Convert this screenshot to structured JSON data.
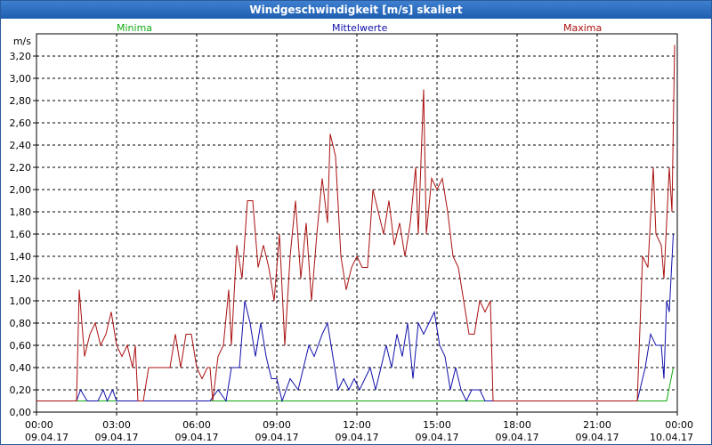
{
  "window": {
    "title": "Windgeschwindigkeit [m/s] skaliert"
  },
  "chart_data": {
    "type": "line",
    "title": "Windgeschwindigkeit [m/s] skaliert",
    "ylabel": "m/s",
    "ylim": [
      0,
      3.4
    ],
    "xlim_hours": [
      0,
      24
    ],
    "y_ticks": [
      "0,00",
      "0,20",
      "0,40",
      "0,60",
      "0,80",
      "1,00",
      "1,20",
      "1,40",
      "1,60",
      "1,80",
      "2,00",
      "2,20",
      "2,40",
      "2,60",
      "2,80",
      "3,00",
      "3,20"
    ],
    "x_ticks": [
      {
        "time": "00:00",
        "date": "09.04.17"
      },
      {
        "time": "03:00",
        "date": "09.04.17"
      },
      {
        "time": "06:00",
        "date": "09.04.17"
      },
      {
        "time": "09:00",
        "date": "09.04.17"
      },
      {
        "time": "12:00",
        "date": "09.04.17"
      },
      {
        "time": "15:00",
        "date": "09.04.17"
      },
      {
        "time": "18:00",
        "date": "09.04.17"
      },
      {
        "time": "21:00",
        "date": "09.04.17"
      },
      {
        "time": "00:00",
        "date": "10.04.17"
      }
    ],
    "grid": true,
    "series": [
      {
        "name": "Minima",
        "color": "#11aa11",
        "points": [
          [
            0,
            0.1
          ],
          [
            23.6,
            0.1
          ],
          [
            23.85,
            0.4
          ]
        ]
      },
      {
        "name": "Mittelwerte",
        "color": "#1111aa",
        "points": [
          [
            0,
            0.1
          ],
          [
            1.5,
            0.1
          ],
          [
            1.65,
            0.2
          ],
          [
            1.9,
            0.1
          ],
          [
            2.3,
            0.1
          ],
          [
            2.5,
            0.2
          ],
          [
            2.65,
            0.1
          ],
          [
            2.85,
            0.2
          ],
          [
            3.0,
            0.1
          ],
          [
            6.5,
            0.1
          ],
          [
            6.8,
            0.2
          ],
          [
            7.1,
            0.1
          ],
          [
            7.3,
            0.4
          ],
          [
            7.6,
            0.4
          ],
          [
            7.8,
            1.0
          ],
          [
            8.0,
            0.8
          ],
          [
            8.2,
            0.5
          ],
          [
            8.4,
            0.8
          ],
          [
            8.6,
            0.5
          ],
          [
            8.8,
            0.3
          ],
          [
            9.0,
            0.3
          ],
          [
            9.2,
            0.1
          ],
          [
            9.5,
            0.3
          ],
          [
            9.8,
            0.2
          ],
          [
            10.0,
            0.4
          ],
          [
            10.2,
            0.6
          ],
          [
            10.4,
            0.5
          ],
          [
            10.7,
            0.7
          ],
          [
            10.9,
            0.8
          ],
          [
            11.1,
            0.5
          ],
          [
            11.3,
            0.2
          ],
          [
            11.5,
            0.3
          ],
          [
            11.7,
            0.2
          ],
          [
            11.9,
            0.3
          ],
          [
            12.1,
            0.2
          ],
          [
            12.3,
            0.3
          ],
          [
            12.5,
            0.4
          ],
          [
            12.7,
            0.2
          ],
          [
            12.9,
            0.4
          ],
          [
            13.1,
            0.6
          ],
          [
            13.3,
            0.4
          ],
          [
            13.5,
            0.7
          ],
          [
            13.7,
            0.5
          ],
          [
            13.9,
            0.8
          ],
          [
            14.1,
            0.3
          ],
          [
            14.3,
            0.8
          ],
          [
            14.5,
            0.7
          ],
          [
            14.7,
            0.8
          ],
          [
            14.9,
            0.9
          ],
          [
            15.1,
            0.6
          ],
          [
            15.3,
            0.5
          ],
          [
            15.5,
            0.2
          ],
          [
            15.7,
            0.4
          ],
          [
            15.9,
            0.2
          ],
          [
            16.1,
            0.1
          ],
          [
            16.3,
            0.2
          ],
          [
            16.6,
            0.2
          ],
          [
            16.8,
            0.1
          ],
          [
            22.5,
            0.1
          ],
          [
            22.8,
            0.4
          ],
          [
            23.0,
            0.7
          ],
          [
            23.2,
            0.6
          ],
          [
            23.4,
            0.6
          ],
          [
            23.5,
            0.3
          ],
          [
            23.6,
            1.0
          ],
          [
            23.7,
            0.9
          ],
          [
            23.85,
            1.6
          ]
        ]
      },
      {
        "name": "Maxima",
        "color": "#aa1111",
        "points": [
          [
            0,
            0.1
          ],
          [
            1.5,
            0.1
          ],
          [
            1.6,
            1.1
          ],
          [
            1.8,
            0.5
          ],
          [
            2.0,
            0.7
          ],
          [
            2.2,
            0.8
          ],
          [
            2.4,
            0.6
          ],
          [
            2.6,
            0.7
          ],
          [
            2.8,
            0.9
          ],
          [
            3.0,
            0.6
          ],
          [
            3.2,
            0.5
          ],
          [
            3.4,
            0.6
          ],
          [
            3.6,
            0.4
          ],
          [
            3.7,
            0.6
          ],
          [
            3.8,
            0.1
          ],
          [
            4.0,
            0.1
          ],
          [
            4.2,
            0.4
          ],
          [
            5.0,
            0.4
          ],
          [
            5.2,
            0.7
          ],
          [
            5.4,
            0.4
          ],
          [
            5.6,
            0.7
          ],
          [
            5.8,
            0.7
          ],
          [
            6.0,
            0.4
          ],
          [
            6.2,
            0.3
          ],
          [
            6.4,
            0.4
          ],
          [
            6.5,
            0.4
          ],
          [
            6.6,
            0.1
          ],
          [
            6.8,
            0.5
          ],
          [
            7.0,
            0.6
          ],
          [
            7.2,
            1.1
          ],
          [
            7.3,
            0.6
          ],
          [
            7.5,
            1.5
          ],
          [
            7.7,
            1.2
          ],
          [
            7.9,
            1.9
          ],
          [
            8.1,
            1.9
          ],
          [
            8.3,
            1.3
          ],
          [
            8.5,
            1.5
          ],
          [
            8.7,
            1.3
          ],
          [
            8.9,
            1.0
          ],
          [
            9.1,
            1.6
          ],
          [
            9.3,
            0.6
          ],
          [
            9.5,
            1.4
          ],
          [
            9.7,
            1.9
          ],
          [
            9.9,
            1.2
          ],
          [
            10.1,
            1.7
          ],
          [
            10.3,
            1.0
          ],
          [
            10.5,
            1.6
          ],
          [
            10.7,
            2.1
          ],
          [
            10.9,
            1.7
          ],
          [
            11.0,
            2.5
          ],
          [
            11.2,
            2.3
          ],
          [
            11.4,
            1.4
          ],
          [
            11.6,
            1.1
          ],
          [
            11.8,
            1.3
          ],
          [
            12.0,
            1.4
          ],
          [
            12.2,
            1.3
          ],
          [
            12.4,
            1.3
          ],
          [
            12.6,
            2.0
          ],
          [
            12.8,
            1.8
          ],
          [
            13.0,
            1.6
          ],
          [
            13.2,
            1.9
          ],
          [
            13.4,
            1.5
          ],
          [
            13.6,
            1.7
          ],
          [
            13.8,
            1.4
          ],
          [
            14.0,
            1.7
          ],
          [
            14.2,
            2.2
          ],
          [
            14.3,
            1.6
          ],
          [
            14.5,
            2.9
          ],
          [
            14.6,
            1.6
          ],
          [
            14.8,
            2.1
          ],
          [
            15.0,
            2.0
          ],
          [
            15.2,
            2.1
          ],
          [
            15.4,
            1.8
          ],
          [
            15.6,
            1.4
          ],
          [
            15.8,
            1.3
          ],
          [
            16.0,
            1.0
          ],
          [
            16.2,
            0.7
          ],
          [
            16.4,
            0.7
          ],
          [
            16.6,
            1.0
          ],
          [
            16.8,
            0.9
          ],
          [
            17.0,
            1.0
          ],
          [
            17.1,
            0.1
          ],
          [
            22.5,
            0.1
          ],
          [
            22.7,
            1.4
          ],
          [
            22.9,
            1.3
          ],
          [
            23.1,
            2.2
          ],
          [
            23.2,
            1.6
          ],
          [
            23.4,
            1.5
          ],
          [
            23.5,
            1.2
          ],
          [
            23.7,
            2.2
          ],
          [
            23.8,
            1.8
          ],
          [
            23.9,
            3.3
          ]
        ]
      }
    ]
  }
}
